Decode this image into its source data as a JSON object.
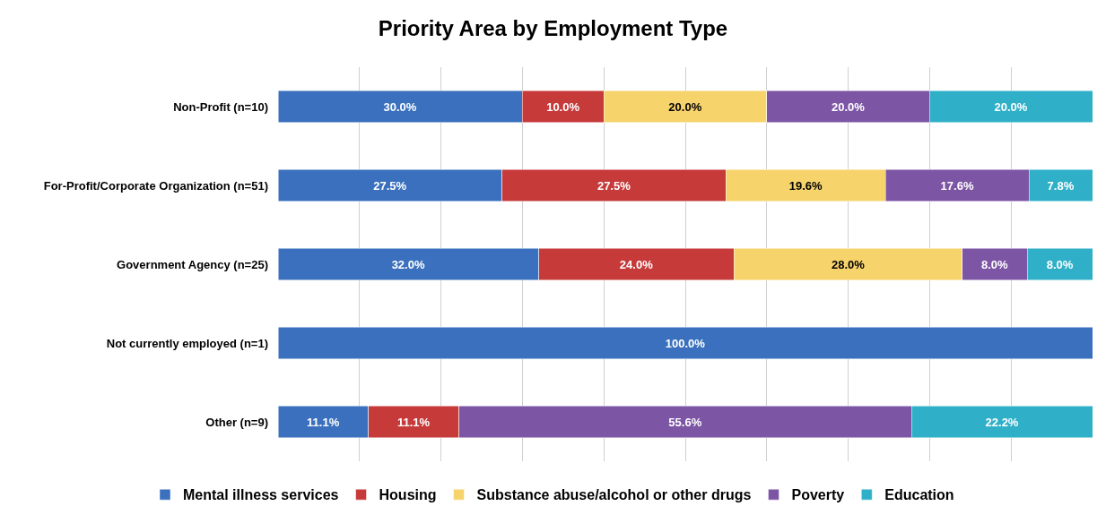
{
  "chart_data": {
    "type": "bar",
    "orientation": "horizontal",
    "stacked": true,
    "title": "Priority Area by Employment Type",
    "categories": [
      "Non-Profit (n=10)",
      "For-Profit/Corporate Organization (n=51)",
      "Government Agency (n=25)",
      "Not currently employed (n=1)",
      "Other (n=9)"
    ],
    "series": [
      {
        "name": "Mental illness services",
        "color": "#3a70bd",
        "values": [
          30.0,
          27.5,
          32.0,
          100.0,
          11.1
        ],
        "value_labels": [
          "30.0%",
          "27.5%",
          "32.0%",
          "100.0%",
          "11.1%"
        ]
      },
      {
        "name": "Housing",
        "color": "#c63a3a",
        "values": [
          10.0,
          27.5,
          24.0,
          null,
          11.1
        ],
        "value_labels": [
          "10.0%",
          "27.5%",
          "24.0%",
          null,
          "11.1%"
        ]
      },
      {
        "name": "Substance abuse/alcohol or other drugs",
        "color": "#f7d36c",
        "values": [
          20.0,
          19.6,
          28.0,
          null,
          null
        ],
        "value_labels": [
          "20.0%",
          "19.6%",
          "28.0%",
          null,
          null
        ]
      },
      {
        "name": "Poverty",
        "color": "#7d55a5",
        "values": [
          20.0,
          17.6,
          8.0,
          null,
          55.6
        ],
        "value_labels": [
          "20.0%",
          "17.6%",
          "8.0%",
          null,
          "55.6%"
        ]
      },
      {
        "name": "Education",
        "color": "#2fb0c8",
        "values": [
          20.0,
          7.8,
          8.0,
          null,
          22.2
        ],
        "value_labels": [
          "20.0%",
          "7.8%",
          "8.0%",
          null,
          "22.2%"
        ]
      }
    ],
    "xlim": [
      0,
      100
    ],
    "xticks": [
      {
        "value": 10,
        "label": null
      },
      {
        "value": 20,
        "label": null
      },
      {
        "value": 30,
        "label": null
      },
      {
        "value": 40,
        "label": null
      },
      {
        "value": 50,
        "label": null
      },
      {
        "value": 60,
        "label": null
      },
      {
        "value": 70,
        "label": null
      },
      {
        "value": 80,
        "label": null
      },
      {
        "value": 90,
        "label": null
      }
    ],
    "grid": "x",
    "legend": "bottom",
    "tick_labels": "y"
  }
}
